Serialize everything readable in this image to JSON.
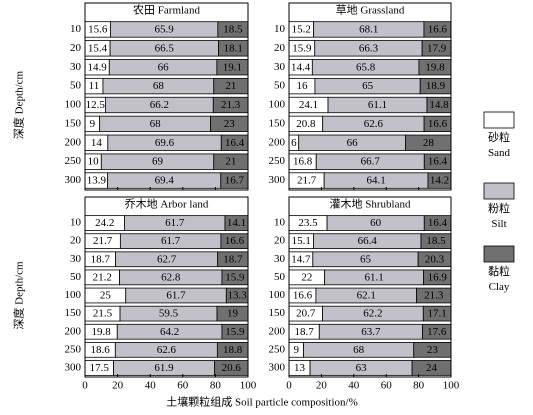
{
  "xlabel": "土壤颗粒组成 Soil particle composition/%",
  "chart_data": [
    {
      "type": "bar",
      "orientation": "horizontal",
      "stacked": true,
      "title": "农田 Farmland",
      "ylabel": "深度 Depth/cm",
      "categories": [
        "10",
        "20",
        "30",
        "50",
        "100",
        "150",
        "200",
        "250",
        "300"
      ],
      "series": [
        {
          "name": "砂粒 Sand",
          "color": "#ffffff",
          "values": [
            15.6,
            15.4,
            14.9,
            11,
            12.5,
            9,
            14,
            10,
            13.9
          ]
        },
        {
          "name": "粉粒 Silt",
          "color": "#c2c0c9",
          "values": [
            65.9,
            66.5,
            66,
            68,
            66.2,
            68,
            69.6,
            69,
            69.4
          ]
        },
        {
          "name": "黏粒 Clay",
          "color": "#707070",
          "values": [
            18.5,
            18.1,
            19.1,
            21,
            21.3,
            23,
            16.4,
            21,
            16.7
          ]
        }
      ],
      "xlim": [
        0,
        100
      ],
      "xticks": [
        0,
        20,
        40,
        60,
        80,
        100
      ]
    },
    {
      "type": "bar",
      "orientation": "horizontal",
      "stacked": true,
      "title": "草地 Grassland",
      "categories": [
        "10",
        "20",
        "30",
        "50",
        "100",
        "150",
        "200",
        "250",
        "300"
      ],
      "series": [
        {
          "name": "砂粒 Sand",
          "color": "#ffffff",
          "values": [
            15.2,
            15.9,
            14.4,
            16,
            24.1,
            20.8,
            6,
            16.8,
            21.7
          ]
        },
        {
          "name": "粉粒 Silt",
          "color": "#c2c0c9",
          "values": [
            68.1,
            66.3,
            65.8,
            65,
            61.1,
            62.6,
            66,
            66.7,
            64.1
          ]
        },
        {
          "name": "黏粒 Clay",
          "color": "#707070",
          "values": [
            16.6,
            17.9,
            19.8,
            18.9,
            14.8,
            16.6,
            28,
            16.4,
            14.2
          ]
        }
      ],
      "xlim": [
        0,
        100
      ],
      "xticks": [
        0,
        20,
        40,
        60,
        80,
        100
      ]
    },
    {
      "type": "bar",
      "orientation": "horizontal",
      "stacked": true,
      "title": "乔木地 Arbor land",
      "ylabel": "深度 Depth/cm",
      "categories": [
        "10",
        "20",
        "30",
        "50",
        "100",
        "150",
        "200",
        "250",
        "300"
      ],
      "series": [
        {
          "name": "砂粒 Sand",
          "color": "#ffffff",
          "values": [
            24.2,
            21.7,
            18.7,
            21.2,
            25,
            21.5,
            19.8,
            18.6,
            17.5
          ]
        },
        {
          "name": "粉粒 Silt",
          "color": "#c2c0c9",
          "values": [
            61.7,
            61.7,
            62.7,
            62.8,
            61.7,
            59.5,
            64.2,
            62.6,
            61.9
          ]
        },
        {
          "name": "黏粒 Clay",
          "color": "#707070",
          "values": [
            14.1,
            16.6,
            18.7,
            15.9,
            13.3,
            19,
            15.9,
            18.8,
            20.6
          ]
        }
      ],
      "xlim": [
        0,
        100
      ],
      "xticks": [
        0,
        20,
        40,
        60,
        80,
        100
      ]
    },
    {
      "type": "bar",
      "orientation": "horizontal",
      "stacked": true,
      "title": "灌木地 Shrubland",
      "categories": [
        "10",
        "20",
        "30",
        "50",
        "100",
        "150",
        "200",
        "250",
        "300"
      ],
      "series": [
        {
          "name": "砂粒 Sand",
          "color": "#ffffff",
          "values": [
            23.5,
            15.1,
            14.7,
            22,
            16.6,
            20.7,
            18.7,
            9,
            13
          ]
        },
        {
          "name": "粉粒 Silt",
          "color": "#c2c0c9",
          "values": [
            60,
            66.4,
            65,
            61.1,
            62.1,
            62.2,
            63.7,
            68,
            63
          ]
        },
        {
          "name": "黏粒 Clay",
          "color": "#707070",
          "values": [
            16.4,
            18.5,
            20.3,
            16.9,
            21.3,
            17.1,
            17.6,
            23,
            24
          ]
        }
      ],
      "xlim": [
        0,
        100
      ],
      "xticks": [
        0,
        20,
        40,
        60,
        80,
        100
      ]
    }
  ]
}
